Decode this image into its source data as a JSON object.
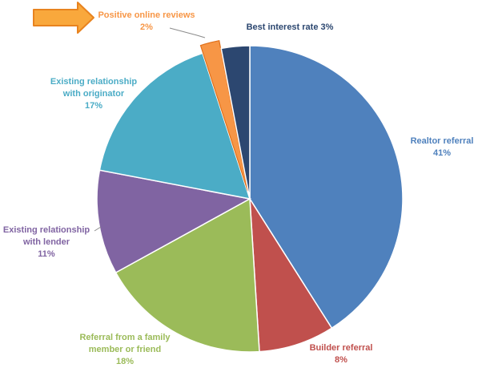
{
  "chart_data": {
    "type": "pie",
    "title": "",
    "start_angle_deg": 0,
    "direction": "clockwise",
    "slices": [
      {
        "key": "realtor",
        "name": "Realtor referral",
        "value": 41,
        "value_label": "41%",
        "color": "#4f81bd"
      },
      {
        "key": "builder",
        "name": "Builder referral",
        "value": 8,
        "value_label": "8%",
        "color": "#c0504d"
      },
      {
        "key": "family",
        "name": "Referral from a family member or friend",
        "value": 18,
        "value_label": "18%",
        "color": "#9bbb59"
      },
      {
        "key": "lender",
        "name": "Existing relationship with lender",
        "value": 11,
        "value_label": "11%",
        "color": "#8064a2"
      },
      {
        "key": "originator",
        "name": "Existing relationship with originator",
        "value": 17,
        "value_label": "17%",
        "color": "#4bacc6"
      },
      {
        "key": "reviews",
        "name": "Positive online reviews",
        "value": 2,
        "value_label": "2%",
        "color": "#f79646",
        "exploded": true
      },
      {
        "key": "rate",
        "name": "Best interest rate 3%",
        "value": 3,
        "value_label": "",
        "color": "#2c4770"
      }
    ],
    "legend": "none",
    "data_labels": "outside"
  },
  "labels": {
    "realtor": [
      "Realtor referral",
      "41%"
    ],
    "builder": [
      "Builder referral",
      "8%"
    ],
    "family": [
      "Referral from a family",
      "member or friend",
      "18%"
    ],
    "lender": [
      "Existing relationship",
      "with lender",
      "11%"
    ],
    "originator": [
      "Existing relationship",
      "with originator",
      "17%"
    ],
    "reviews": [
      "Positive online reviews",
      "2%"
    ],
    "rate": [
      "Best interest rate 3%"
    ]
  },
  "callout": {
    "icon": "right-arrow-icon",
    "fill": "#f9a83c",
    "stroke": "#e8831f"
  }
}
